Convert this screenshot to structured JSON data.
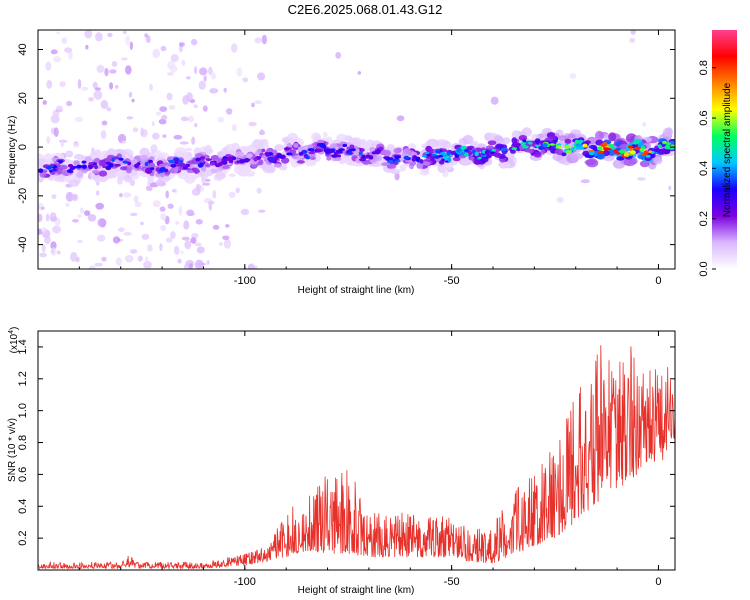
{
  "title": "C2E6.2025.068.01.43.G12",
  "chart_data": [
    {
      "type": "heatmap",
      "xlabel": "Height of straight line (km)",
      "ylabel": "Frequency (Hz)",
      "xlim": [
        -150,
        4
      ],
      "ylim": [
        -50,
        48
      ],
      "x_ticks": [
        -100,
        -50,
        0
      ],
      "y_ticks": [
        -40,
        -20,
        0,
        20,
        40
      ],
      "ridge": {
        "x": [
          -150,
          -140,
          -130,
          -120,
          -110,
          -100,
          -90,
          -80,
          -70,
          -60,
          -50,
          -40,
          -30,
          -20,
          -10,
          -5,
          0,
          3
        ],
        "frequency": [
          -9,
          -8,
          -7,
          -8,
          -7,
          -5,
          -3,
          -1,
          -3,
          -5,
          -3,
          -2,
          1,
          0,
          -1,
          -2,
          -1,
          0
        ],
        "peak_amplitude": [
          0.35,
          0.3,
          0.35,
          0.35,
          0.3,
          0.3,
          0.35,
          0.3,
          0.35,
          0.35,
          0.45,
          0.45,
          0.5,
          0.6,
          0.85,
          0.8,
          0.7,
          0.6
        ]
      },
      "colorbar": {
        "label": "Normalized spectral amplitude",
        "range": [
          0,
          0.95
        ],
        "ticks": [
          0.0,
          0.2,
          0.4,
          0.6,
          0.8
        ],
        "colors": [
          "#ffffff",
          "#d9b6ff",
          "#7b00e0",
          "#1a00ff",
          "#00c8ff",
          "#00ff60",
          "#ffff00",
          "#ff8000",
          "#ff0000",
          "#ff4090"
        ]
      }
    },
    {
      "type": "line",
      "xlabel": "Height of straight line (km)",
      "ylabel": "SNR (10 * v/v)",
      "multiplier_label": "(x10",
      "multiplier_exp": "4",
      "xlim": [
        -150,
        4
      ],
      "ylim": [
        0,
        1.5
      ],
      "x_ticks": [
        -100,
        -50,
        0
      ],
      "y_ticks": [
        0.2,
        0.4,
        0.6,
        0.8,
        1.0,
        1.2,
        1.4
      ],
      "line_color": "#e8302a",
      "envelope": {
        "x": [
          -150,
          -130,
          -128,
          -126,
          -110,
          -100,
          -95,
          -90,
          -88,
          -85,
          -80,
          -75,
          -70,
          -60,
          -50,
          -45,
          -40,
          -35,
          -30,
          -25,
          -20,
          -15,
          -10,
          -7,
          -5,
          -2,
          0,
          4
        ],
        "lower": [
          0.01,
          0.01,
          0.02,
          0.01,
          0.01,
          0.03,
          0.05,
          0.08,
          0.1,
          0.12,
          0.1,
          0.1,
          0.08,
          0.08,
          0.08,
          0.05,
          0.04,
          0.1,
          0.15,
          0.2,
          0.3,
          0.4,
          0.5,
          0.55,
          0.6,
          0.7,
          0.65,
          0.8
        ],
        "upper": [
          0.05,
          0.05,
          0.1,
          0.05,
          0.05,
          0.1,
          0.15,
          0.35,
          0.45,
          0.5,
          0.6,
          0.65,
          0.4,
          0.35,
          0.35,
          0.25,
          0.3,
          0.5,
          0.6,
          0.8,
          1.1,
          1.45,
          1.35,
          1.5,
          1.2,
          1.3,
          1.25,
          1.3
        ]
      }
    }
  ]
}
